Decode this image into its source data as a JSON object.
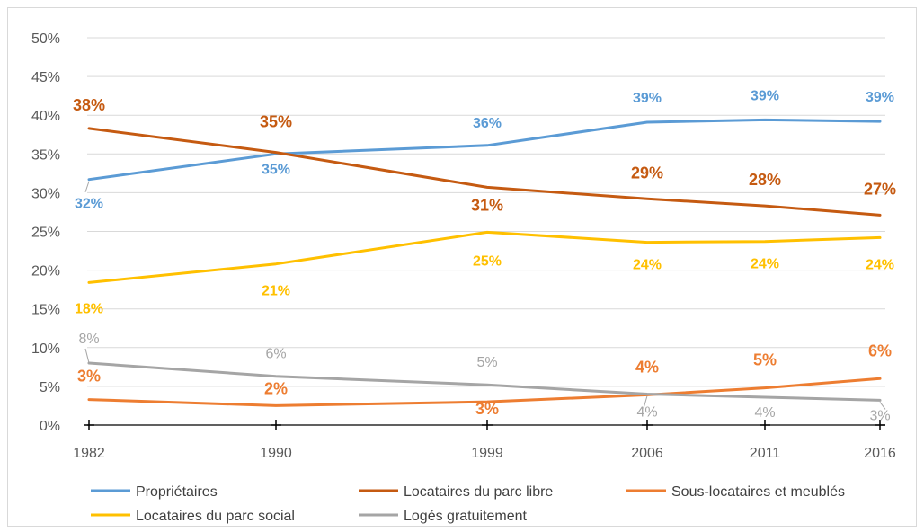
{
  "chart_data": {
    "type": "line",
    "x": [
      "1982",
      "1990",
      "1999",
      "2006",
      "2011",
      "2016"
    ],
    "ylim": [
      0,
      50
    ],
    "y_ticks": [
      "0%",
      "5%",
      "10%",
      "15%",
      "20%",
      "25%",
      "30%",
      "35%",
      "40%",
      "45%",
      "50%"
    ],
    "grid": true,
    "legend_position": "bottom",
    "series": [
      {
        "name": "Propriétaires",
        "color": "#5b9bd5",
        "values": [
          31.7,
          35.0,
          36.1,
          39.1,
          39.4,
          39.2
        ],
        "labels": [
          "32%",
          "35%",
          "36%",
          "39%",
          "39%",
          "39%"
        ]
      },
      {
        "name": "Locataires du parc libre",
        "color": "#c55a11",
        "values": [
          38.3,
          35.2,
          30.7,
          29.2,
          28.3,
          27.1
        ],
        "labels": [
          "38%",
          "35%",
          "31%",
          "29%",
          "28%",
          "27%"
        ]
      },
      {
        "name": "Sous-locataires et meublés",
        "color": "#ed7d31",
        "values": [
          3.3,
          2.5,
          3.0,
          3.9,
          4.8,
          6.0
        ],
        "labels": [
          "3%",
          "2%",
          "3%",
          "4%",
          "5%",
          "6%"
        ]
      },
      {
        "name": "Locataires du parc social",
        "color": "#ffc000",
        "values": [
          18.4,
          20.8,
          24.9,
          23.6,
          23.7,
          24.2
        ],
        "labels": [
          "18%",
          "21%",
          "25%",
          "24%",
          "24%",
          "24%"
        ]
      },
      {
        "name": "Logés gratuitement",
        "color": "#a5a5a5",
        "values": [
          8.0,
          6.3,
          5.2,
          4.0,
          3.6,
          3.2
        ],
        "labels": [
          "8%",
          "6%",
          "5%",
          "4%",
          "4%",
          "3%"
        ]
      }
    ]
  }
}
